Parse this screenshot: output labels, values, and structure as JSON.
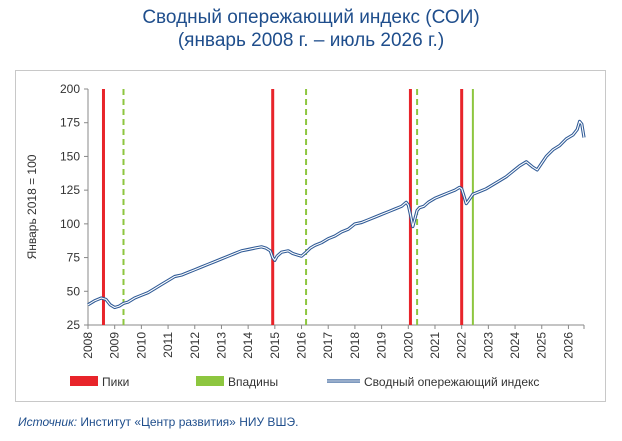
{
  "title_line1": "Сводный опережающий индекс (СОИ)",
  "title_line2": "(январь 2008 г. – июль 2026 г.)",
  "source_label": "Источник:",
  "source_text": "Институт «Центр развития» НИУ ВШЭ.",
  "colors": {
    "title": "#1f4e8c",
    "peak": "#e8242a",
    "trough": "#8dc63f",
    "line_outer": "#2f5a96",
    "line_inner": "#ffffff"
  },
  "chart_data": {
    "type": "line",
    "ylabel": "Январь 2018 = 100",
    "ylim": [
      25,
      200
    ],
    "yticks": [
      25,
      50,
      75,
      100,
      125,
      150,
      175,
      200
    ],
    "xlim": [
      2008.0,
      2026.583
    ],
    "xtick_labels": [
      "2008",
      "2009",
      "2010",
      "2011",
      "2012",
      "2013",
      "2014",
      "2015",
      "2016",
      "2017",
      "2018",
      "2019",
      "2020",
      "2021",
      "2022",
      "2023",
      "2024",
      "2025",
      "2026"
    ],
    "grid": false,
    "legend_position": "bottom",
    "legend": {
      "peaks": "Пики",
      "troughs": "Впадины",
      "series": "Сводный опережающий индекс"
    },
    "peaks": [
      2008.58,
      2014.92,
      2020.08,
      2022.0
    ],
    "troughs": [
      2009.33,
      2016.17,
      2020.33,
      2022.42
    ],
    "series": [
      {
        "name": "Сводный опережающий индекс",
        "x": [
          2008.0,
          2008.25,
          2008.5,
          2008.67,
          2008.83,
          2009.0,
          2009.17,
          2009.33,
          2009.5,
          2009.75,
          2010.0,
          2010.25,
          2010.5,
          2010.75,
          2011.0,
          2011.25,
          2011.5,
          2011.75,
          2012.0,
          2012.25,
          2012.5,
          2012.75,
          2013.0,
          2013.25,
          2013.5,
          2013.75,
          2014.0,
          2014.25,
          2014.5,
          2014.67,
          2014.83,
          2014.92,
          2015.0,
          2015.08,
          2015.25,
          2015.5,
          2015.67,
          2015.83,
          2016.0,
          2016.17,
          2016.33,
          2016.5,
          2016.75,
          2017.0,
          2017.25,
          2017.5,
          2017.75,
          2018.0,
          2018.25,
          2018.5,
          2018.75,
          2019.0,
          2019.25,
          2019.5,
          2019.75,
          2019.92,
          2020.0,
          2020.08,
          2020.17,
          2020.25,
          2020.33,
          2020.42,
          2020.58,
          2020.75,
          2021.0,
          2021.25,
          2021.5,
          2021.75,
          2021.92,
          2022.0,
          2022.08,
          2022.17,
          2022.25,
          2022.42,
          2022.67,
          2022.92,
          2023.17,
          2023.42,
          2023.67,
          2023.92,
          2024.17,
          2024.42,
          2024.67,
          2024.83,
          2025.0,
          2025.17,
          2025.42,
          2025.67,
          2025.92,
          2026.17,
          2026.33,
          2026.42,
          2026.5,
          2026.583
        ],
        "y": [
          40,
          43,
          45,
          44,
          40,
          38,
          39,
          41,
          42,
          45,
          47,
          49,
          52,
          55,
          58,
          61,
          62,
          64,
          66,
          68,
          70,
          72,
          74,
          76,
          78,
          80,
          81,
          82,
          83,
          82,
          80,
          75,
          73,
          76,
          79,
          80,
          78,
          77,
          76,
          79,
          82,
          84,
          86,
          89,
          91,
          94,
          96,
          100,
          101,
          103,
          105,
          107,
          109,
          111,
          113,
          116,
          114,
          107,
          98,
          104,
          110,
          112,
          113,
          116,
          119,
          121,
          123,
          125,
          127,
          126,
          121,
          115,
          117,
          122,
          124,
          126,
          129,
          132,
          135,
          139,
          143,
          146,
          142,
          140,
          145,
          150,
          155,
          158,
          163,
          166,
          170,
          176,
          174,
          164
        ]
      }
    ]
  }
}
